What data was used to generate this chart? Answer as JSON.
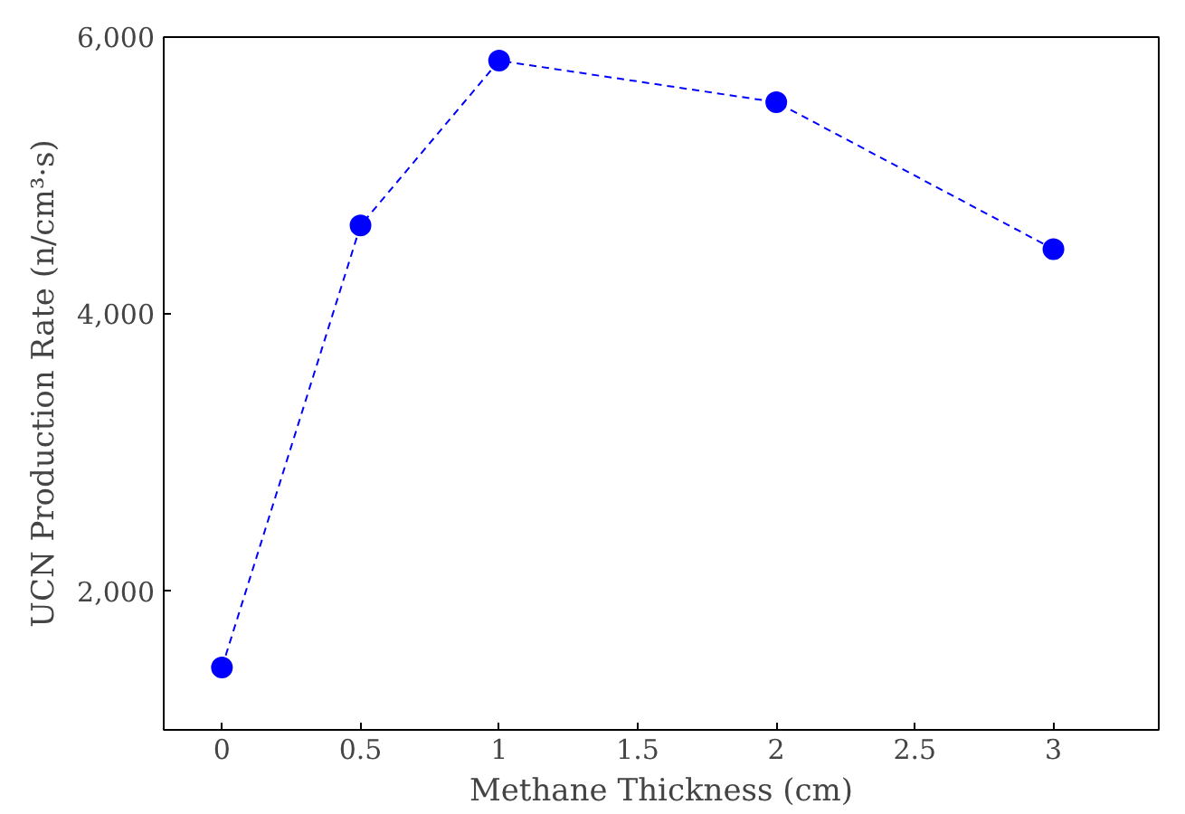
{
  "chart_data": {
    "type": "line",
    "xlabel": "Methane Thickness (cm)",
    "ylabel": "UCN Production Rate (n/cm³·s)",
    "x": [
      0,
      0.5,
      1,
      2,
      3
    ],
    "series": [
      {
        "color": "#0000ff",
        "values": [
          1450,
          4640,
          5830,
          5530,
          4470
        ]
      }
    ],
    "xlim": [
      -0.21,
      3.38
    ],
    "ylim": [
      1000,
      6000
    ],
    "xticks": [
      0,
      0.5,
      1,
      1.5,
      2,
      2.5,
      3
    ],
    "yticks": [
      {
        "value": 2000,
        "label": "2,000"
      },
      {
        "value": 4000,
        "label": "4,000"
      },
      {
        "value": 6000,
        "label": "6,000"
      }
    ],
    "marker": "circle",
    "line_style": "dashed",
    "grid": false
  }
}
